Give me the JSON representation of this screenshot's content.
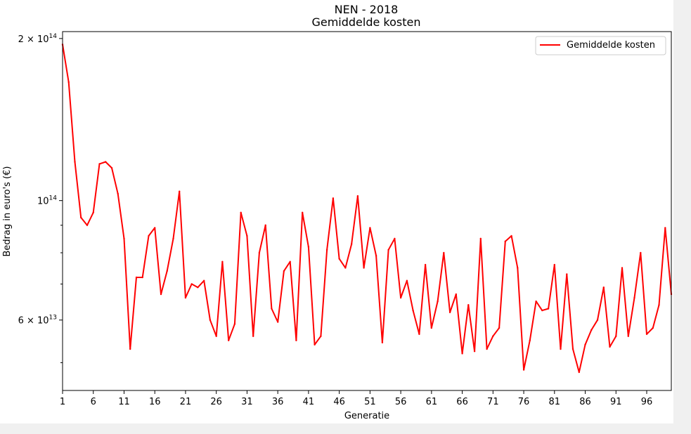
{
  "chart_data": {
    "type": "line",
    "title": "NEN - 2018",
    "subtitle": "Gemiddelde kosten",
    "xlabel": "Generatie",
    "ylabel": "Bedrag in euro's (€)",
    "yscale": "log",
    "xlim": [
      1,
      100
    ],
    "ylim": [
      44400000000000.0,
      206000000000000.0
    ],
    "xticks": [
      1,
      6,
      11,
      16,
      21,
      26,
      31,
      36,
      41,
      46,
      51,
      56,
      61,
      66,
      71,
      76,
      81,
      86,
      91,
      96
    ],
    "yticks": [
      {
        "value": 200000000000000.0,
        "mantissa": "2",
        "base": "10",
        "exp": "14"
      },
      {
        "value": 100000000000000.0,
        "mantissa": "",
        "base": "10",
        "exp": "14"
      },
      {
        "value": 60000000000000.0,
        "mantissa": "6",
        "base": "10",
        "exp": "13"
      }
    ],
    "grid": false,
    "legend_position": "top-right",
    "series": [
      {
        "name": "Gemiddelde kosten",
        "color": "#ff0000",
        "x": [
          1,
          2,
          3,
          4,
          5,
          6,
          7,
          8,
          9,
          10,
          11,
          12,
          13,
          14,
          15,
          16,
          17,
          18,
          19,
          20,
          21,
          22,
          23,
          24,
          25,
          26,
          27,
          28,
          29,
          30,
          31,
          32,
          33,
          34,
          35,
          36,
          37,
          38,
          39,
          40,
          41,
          42,
          43,
          44,
          45,
          46,
          47,
          48,
          49,
          50,
          51,
          52,
          53,
          54,
          55,
          56,
          57,
          58,
          59,
          60,
          61,
          62,
          63,
          64,
          65,
          66,
          67,
          68,
          69,
          70,
          71,
          72,
          73,
          74,
          75,
          76,
          77,
          78,
          79,
          80,
          81,
          82,
          83,
          84,
          85,
          86,
          87,
          88,
          89,
          90,
          91,
          92,
          93,
          94,
          95,
          96,
          97,
          98,
          99,
          100
        ],
        "values": [
          195000000000000.0,
          166000000000000.0,
          118000000000000.0,
          93000000000000.0,
          90000000000000.0,
          95000000000000.0,
          117000000000000.0,
          118000000000000.0,
          115000000000000.0,
          103000000000000.0,
          85000000000000.0,
          53000000000000.0,
          72000000000000.0,
          72000000000000.0,
          86000000000000.0,
          89000000000000.0,
          67000000000000.0,
          74000000000000.0,
          85000000000000.0,
          104000000000000.0,
          66000000000000.0,
          70000000000000.0,
          69000000000000.0,
          71000000000000.0,
          60000000000000.0,
          56000000000000.0,
          77000000000000.0,
          55000000000000.0,
          59000000000000.0,
          95000000000000.0,
          86000000000000.0,
          56000000000000.0,
          80000000000000.0,
          90000000000000.0,
          63000000000000.0,
          59500000000000.0,
          74000000000000.0,
          77000000000000.0,
          55000000000000.0,
          95000000000000.0,
          82000000000000.0,
          54000000000000.0,
          56000000000000.0,
          81000000000000.0,
          101000000000000.0,
          78000000000000.0,
          75000000000000.0,
          83000000000000.0,
          102000000000000.0,
          75000000000000.0,
          89000000000000.0,
          79000000000000.0,
          54500000000000.0,
          81000000000000.0,
          85000000000000.0,
          66000000000000.0,
          71000000000000.0,
          62500000000000.0,
          56500000000000.0,
          76000000000000.0,
          58000000000000.0,
          65000000000000.0,
          80000000000000.0,
          62000000000000.0,
          67000000000000.0,
          52000000000000.0,
          64000000000000.0,
          52500000000000.0,
          85000000000000.0,
          53000000000000.0,
          56000000000000.0,
          58000000000000.0,
          84000000000000.0,
          86000000000000.0,
          75000000000000.0,
          48500000000000.0,
          55000000000000.0,
          65000000000000.0,
          62500000000000.0,
          63000000000000.0,
          76000000000000.0,
          53000000000000.0,
          73000000000000.0,
          53000000000000.0,
          48000000000000.0,
          54000000000000.0,
          57500000000000.0,
          60000000000000.0,
          69000000000000.0,
          53500000000000.0,
          56000000000000.0,
          75000000000000.0,
          56000000000000.0,
          66000000000000.0,
          80000000000000.0,
          56500000000000.0,
          58000000000000.0,
          64000000000000.0,
          89000000000000.0,
          67000000000000.0
        ]
      }
    ]
  }
}
